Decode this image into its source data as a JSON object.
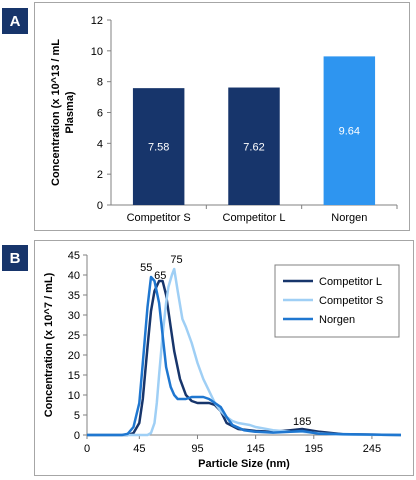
{
  "panels": {
    "a_letter": "A",
    "b_letter": "B"
  },
  "chart_data": [
    {
      "type": "bar",
      "panel": "A",
      "categories": [
        "Competitor S",
        "Competitor L",
        "Norgen"
      ],
      "values": [
        7.58,
        7.62,
        9.64
      ],
      "value_labels": [
        "7.58",
        "7.62",
        "9.64"
      ],
      "colors": [
        "#17356b",
        "#17356b",
        "#2e95f0"
      ],
      "title": "",
      "xlabel": "",
      "ylabel": "Concentration (x 10^13 / mL Plasma)",
      "ylabel_lines": [
        "Concentration (x 10^13 / mL",
        "Plasma)"
      ],
      "ylim": [
        0,
        12
      ],
      "yticks": [
        0,
        2,
        4,
        6,
        8,
        10,
        12
      ],
      "grid": false,
      "legend": false
    },
    {
      "type": "line",
      "panel": "B",
      "title": "",
      "xlabel": "Particle Size (nm)",
      "ylabel": "Concentration (x 10^7 / mL)",
      "xlim": [
        0,
        270
      ],
      "ylim": [
        0,
        45
      ],
      "xticks": [
        0,
        45,
        95,
        145,
        195,
        245
      ],
      "yticks": [
        0,
        5,
        10,
        15,
        20,
        25,
        30,
        35,
        40,
        45
      ],
      "grid": false,
      "legend_position": "top-right",
      "series": [
        {
          "name": "Competitor L",
          "color": "#17356b",
          "x": [
            0,
            35,
            40,
            45,
            48,
            52,
            55,
            58,
            62,
            65,
            68,
            72,
            75,
            80,
            85,
            90,
            95,
            100,
            105,
            110,
            115,
            120,
            130,
            145,
            160,
            175,
            185,
            200,
            220,
            270
          ],
          "y": [
            0,
            0,
            0.5,
            3,
            9,
            22,
            31,
            36,
            38.5,
            38.5,
            35,
            27,
            21,
            14,
            10,
            8.5,
            8,
            8,
            8,
            7.5,
            6,
            3,
            1.5,
            1,
            0.8,
            1.2,
            1.5,
            0.8,
            0.2,
            0
          ]
        },
        {
          "name": "Competitor S",
          "color": "#9fcff5",
          "x": [
            0,
            52,
            55,
            58,
            60,
            62,
            65,
            68,
            70,
            73,
            75,
            78,
            82,
            85,
            90,
            95,
            100,
            105,
            110,
            115,
            120,
            125,
            130,
            140,
            145,
            160,
            175,
            185,
            200,
            220,
            270
          ],
          "y": [
            0,
            0,
            0.5,
            3,
            8,
            15,
            25,
            33,
            37,
            40,
            41.5,
            36,
            29,
            27,
            23,
            18,
            14,
            11,
            8,
            6,
            4.5,
            3.5,
            3,
            2.5,
            2,
            1.2,
            0.8,
            0.8,
            0.4,
            0.1,
            0
          ]
        },
        {
          "name": "Norgen",
          "color": "#1f77d0",
          "x": [
            0,
            30,
            35,
            40,
            45,
            48,
            52,
            55,
            58,
            62,
            65,
            68,
            72,
            75,
            78,
            82,
            85,
            90,
            95,
            100,
            105,
            110,
            115,
            120,
            125,
            135,
            145,
            160,
            175,
            185,
            200,
            270
          ],
          "y": [
            0,
            0,
            0.3,
            2,
            8,
            18,
            32,
            39.5,
            38.5,
            33,
            25,
            17,
            12,
            10,
            9,
            9,
            9,
            9.5,
            9.5,
            9.5,
            9,
            8,
            7,
            4.5,
            2.5,
            1.2,
            0.8,
            0.6,
            0.8,
            1,
            0.3,
            0
          ]
        }
      ],
      "annotations": [
        {
          "text": "55",
          "x": 51,
          "y": 41
        },
        {
          "text": "65",
          "x": 63,
          "y": 39
        },
        {
          "text": "75",
          "x": 77,
          "y": 43
        },
        {
          "text": "185",
          "x": 185,
          "y": 2.5
        }
      ]
    }
  ]
}
